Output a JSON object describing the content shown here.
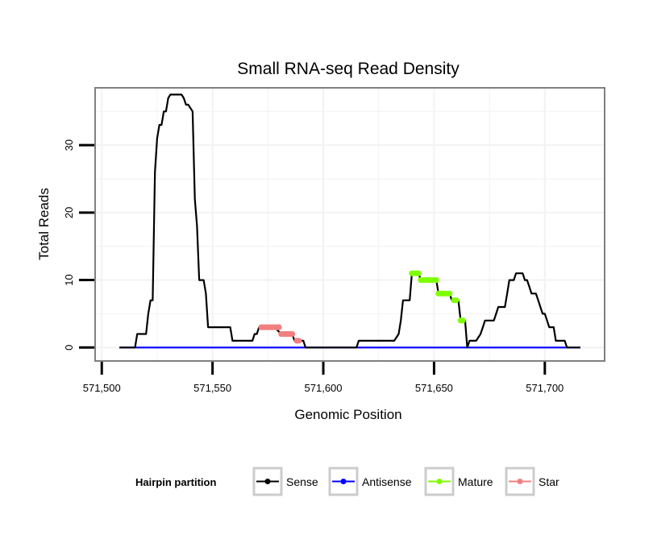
{
  "chart_data": {
    "type": "line",
    "title": "Small RNA-seq Read Density",
    "xlabel": "Genomic Position",
    "ylabel": "Total Reads",
    "xlim": [
      571497,
      571727
    ],
    "ylim": [
      -2,
      38.5
    ],
    "grid": true,
    "x_ticks": [
      571500,
      571550,
      571600,
      571650,
      571700
    ],
    "x_tick_labels": [
      "571,500",
      "571,550",
      "571,600",
      "571,650",
      "571,700"
    ],
    "y_ticks": [
      0,
      10,
      20,
      30
    ],
    "y_tick_labels": [
      "0",
      "10",
      "20",
      "30"
    ],
    "legend": {
      "title": "Hairpin partition",
      "position": "bottom",
      "entries": [
        "Sense",
        "Antisense",
        "Mature",
        "Star"
      ]
    },
    "colors": {
      "Sense": "#000000",
      "Antisense": "#0000ff",
      "Mature": "#7fff00",
      "Star": "#f08080",
      "panel_border": "#808080",
      "grid": "#f2f2f2"
    },
    "series": [
      {
        "name": "Sense",
        "style": "line",
        "points": [
          [
            571508,
            0
          ],
          [
            571515,
            0
          ],
          [
            571516,
            2
          ],
          [
            571520,
            2
          ],
          [
            571521,
            5
          ],
          [
            571522,
            7
          ],
          [
            571523,
            7
          ],
          [
            571524,
            26
          ],
          [
            571525,
            31
          ],
          [
            571526,
            33
          ],
          [
            571527,
            33
          ],
          [
            571528,
            35
          ],
          [
            571529,
            35
          ],
          [
            571530,
            37
          ],
          [
            571531,
            37.5
          ],
          [
            571536,
            37.5
          ],
          [
            571537,
            37
          ],
          [
            571538,
            36
          ],
          [
            571539,
            36
          ],
          [
            571540,
            35.5
          ],
          [
            571541,
            35
          ],
          [
            571542,
            22
          ],
          [
            571543,
            18
          ],
          [
            571544,
            10
          ],
          [
            571546,
            10
          ],
          [
            571547,
            8
          ],
          [
            571548,
            3
          ],
          [
            571558,
            3
          ],
          [
            571559,
            1
          ],
          [
            571568,
            1
          ],
          [
            571569,
            2
          ],
          [
            571570,
            2
          ],
          [
            571571,
            3
          ],
          [
            571578,
            3
          ],
          [
            571581,
            2
          ],
          [
            571586,
            2
          ],
          [
            571587,
            1
          ],
          [
            571591,
            1
          ],
          [
            571592,
            0
          ],
          [
            571615,
            0
          ],
          [
            571616,
            1
          ],
          [
            571632,
            1
          ],
          [
            571634,
            2
          ],
          [
            571635,
            4
          ],
          [
            571636,
            7
          ],
          [
            571639,
            7
          ],
          [
            571640,
            11
          ],
          [
            571643,
            11
          ],
          [
            571644,
            10
          ],
          [
            571651,
            10
          ],
          [
            571652,
            8
          ],
          [
            571657,
            8
          ],
          [
            571658,
            7
          ],
          [
            571661,
            7
          ],
          [
            571662,
            4
          ],
          [
            571664,
            4
          ],
          [
            571665,
            0
          ],
          [
            571666,
            1
          ],
          [
            571669,
            1
          ],
          [
            571671,
            2
          ],
          [
            571672,
            3
          ],
          [
            571673,
            4
          ],
          [
            571677,
            4
          ],
          [
            571678,
            5
          ],
          [
            571679,
            6
          ],
          [
            571682,
            6
          ],
          [
            571683,
            8
          ],
          [
            571684,
            10
          ],
          [
            571686,
            10
          ],
          [
            571687,
            11
          ],
          [
            571690,
            11
          ],
          [
            571691,
            10
          ],
          [
            571692,
            10
          ],
          [
            571693,
            9
          ],
          [
            571694,
            8
          ],
          [
            571696,
            8
          ],
          [
            571697,
            7
          ],
          [
            571698,
            6
          ],
          [
            571699,
            5
          ],
          [
            571700,
            5
          ],
          [
            571701,
            4
          ],
          [
            571702,
            3
          ],
          [
            571704,
            3
          ],
          [
            571705,
            1
          ],
          [
            571709,
            1
          ],
          [
            571710,
            0
          ],
          [
            571716,
            0
          ]
        ]
      },
      {
        "name": "Antisense",
        "style": "line",
        "points": [
          [
            571508,
            0
          ],
          [
            571716,
            0
          ]
        ]
      },
      {
        "name": "Star",
        "style": "points",
        "points": [
          [
            571572,
            3
          ],
          [
            571573,
            3
          ],
          [
            571574,
            3
          ],
          [
            571575,
            3
          ],
          [
            571576,
            3
          ],
          [
            571577,
            3
          ],
          [
            571578,
            3
          ],
          [
            571579,
            3
          ],
          [
            571580,
            3
          ],
          [
            571581,
            2
          ],
          [
            571582,
            2
          ],
          [
            571583,
            2
          ],
          [
            571584,
            2
          ],
          [
            571585,
            2
          ],
          [
            571586,
            2
          ],
          [
            571588,
            1
          ],
          [
            571589,
            1
          ]
        ]
      },
      {
        "name": "Mature",
        "style": "points",
        "points": [
          [
            571640,
            11
          ],
          [
            571641,
            11
          ],
          [
            571642,
            11
          ],
          [
            571643,
            11
          ],
          [
            571644,
            10
          ],
          [
            571645,
            10
          ],
          [
            571646,
            10
          ],
          [
            571647,
            10
          ],
          [
            571648,
            10
          ],
          [
            571649,
            10
          ],
          [
            571650,
            10
          ],
          [
            571651,
            10
          ],
          [
            571652,
            8
          ],
          [
            571653,
            8
          ],
          [
            571654,
            8
          ],
          [
            571655,
            8
          ],
          [
            571656,
            8
          ],
          [
            571657,
            8
          ],
          [
            571659,
            7
          ],
          [
            571660,
            7
          ],
          [
            571662,
            4
          ],
          [
            571663,
            4
          ]
        ]
      }
    ]
  }
}
